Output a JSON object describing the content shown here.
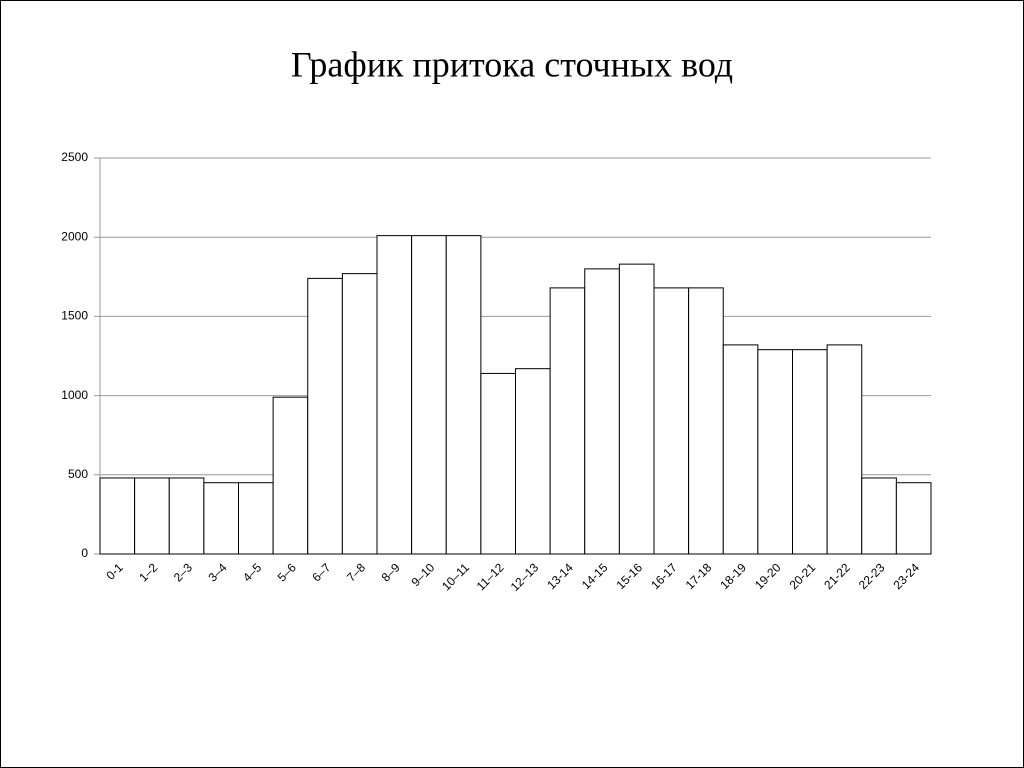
{
  "chart_data": {
    "type": "bar",
    "title": "График притока сточных вод",
    "categories": [
      "0-1",
      "1–2",
      "2–3",
      "3–4",
      "4–5",
      "5–6",
      "6–7",
      "7–8",
      "8–9",
      "9–10",
      "10–11",
      "11–12",
      "12–13",
      "13-14",
      "14-15",
      "15-16",
      "16-17",
      "17-18",
      "18-19",
      "19-20",
      "20-21",
      "21-22",
      "22-23",
      "23-24"
    ],
    "values": [
      480,
      480,
      480,
      450,
      450,
      990,
      1740,
      1770,
      2010,
      2010,
      2010,
      1140,
      1170,
      1680,
      1800,
      1830,
      1680,
      1680,
      1320,
      1290,
      1290,
      1320,
      480,
      450
    ],
    "color": "#ffffff",
    "ylim": [
      0,
      2500
    ],
    "yticks": [
      0,
      500,
      1000,
      1500,
      2000,
      2500
    ],
    "grid": true
  }
}
